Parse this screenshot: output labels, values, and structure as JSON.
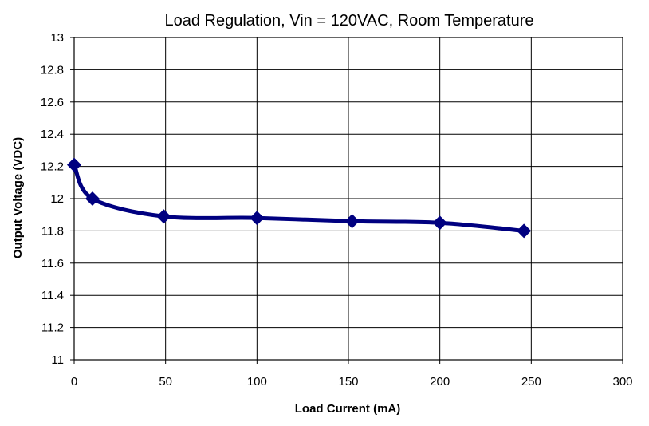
{
  "chart_data": {
    "type": "line",
    "title": "Load Regulation, Vin = 120VAC, Room Temperature",
    "xlabel": "Load Current (mA)",
    "ylabel": "Output Voltage (VDC)",
    "xlim": [
      0,
      300
    ],
    "ylim": [
      11,
      13
    ],
    "x_ticks": [
      "0",
      "50",
      "100",
      "150",
      "200",
      "250",
      "300"
    ],
    "y_ticks": [
      "11",
      "11.2",
      "11.4",
      "11.6",
      "11.8",
      "12",
      "12.2",
      "12.4",
      "12.6",
      "12.8",
      "13"
    ],
    "grid": true,
    "legend": "none",
    "series": [
      {
        "x": [
          0,
          10,
          49,
          100,
          152,
          200,
          246
        ],
        "y": [
          12.21,
          12.0,
          11.89,
          11.88,
          11.86,
          11.85,
          11.8
        ],
        "color": "#000080",
        "marker": "diamond",
        "smooth": true
      }
    ]
  }
}
